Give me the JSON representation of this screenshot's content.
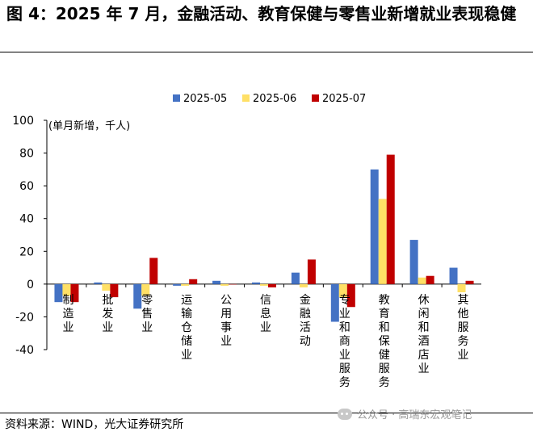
{
  "title": "图 4：2025 年 7 月，金融活动、教育保健与零售业新增就业表现稳健",
  "source": "资料来源：WIND，光大证券研究所",
  "watermark": "公众号 · 高瑞东宏观笔记",
  "chart_data": {
    "type": "bar",
    "ylabel": "(单月新增，千人)",
    "ylim": [
      -40,
      100
    ],
    "yticks": [
      -40,
      -20,
      0,
      20,
      40,
      60,
      80,
      100
    ],
    "categories": [
      "制造业",
      "批发业",
      "零售业",
      "运输仓储业",
      "公用事业",
      "信息业",
      "金融活动",
      "专业和商业服务",
      "教育和保健服务",
      "休闲和酒店业",
      "其他服务业"
    ],
    "series": [
      {
        "name": "2025-05",
        "color": "#4472c4",
        "values": [
          -11,
          1,
          -15,
          -1,
          2,
          1,
          7,
          -23,
          70,
          27,
          10
        ]
      },
      {
        "name": "2025-06",
        "color": "#ffe066",
        "values": [
          -7,
          -4,
          -7,
          -1,
          -1,
          -1,
          -2,
          -8,
          52,
          4,
          -5
        ]
      },
      {
        "name": "2025-07",
        "color": "#c00000",
        "values": [
          -11,
          -8,
          16,
          3,
          0,
          -2,
          15,
          -14,
          79,
          5,
          2
        ]
      }
    ],
    "legend_position": "top",
    "grid": false
  }
}
